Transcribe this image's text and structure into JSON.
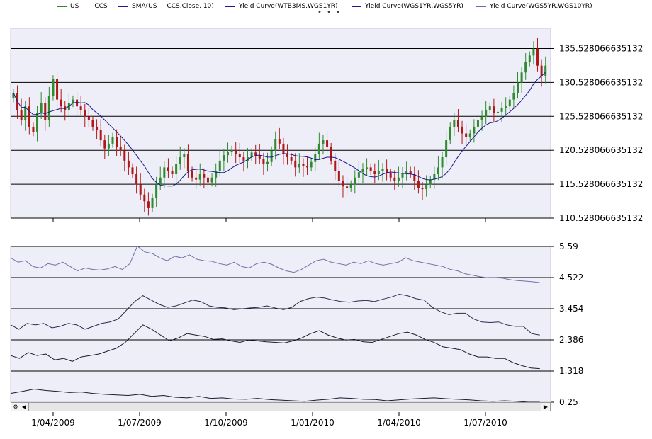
{
  "legend": [
    {
      "label": "US",
      "color": "#2e8b2e"
    },
    {
      "label": "CCS",
      "color": ""
    },
    {
      "label": "SMA(US",
      "color": "#1a1a8c"
    },
    {
      "label": "CCS.Close, 10)",
      "color": ""
    },
    {
      "label": "Yield Curve(WTB3MS,WGS1YR)",
      "color": "#1a1a8c"
    },
    {
      "label": "Yield Curve(WGS1YR,WGS5YR)",
      "color": "#1a1a8c"
    },
    {
      "label": "Yield Curve(WGS5YR,WGS10YR)",
      "color": "#6a6aa8"
    }
  ],
  "more_indicator": "• • •",
  "colors": {
    "up": "#2e8b2e",
    "down": "#b01818",
    "sma": "#1a1a8c",
    "plot_bg": "#eeeef8",
    "grid": "#000000"
  },
  "scrollbar": {
    "left_icon": "gear-icon",
    "left_arrow": "arrow-left-icon",
    "right_arrow": "arrow-right-icon"
  },
  "chart_data": [
    {
      "type": "candlestick",
      "title": "",
      "ylim": [
        110.528066635132,
        138.5
      ],
      "y_ticks": [
        "135.528066635132",
        "130.528066635132",
        "125.528066635132",
        "120.528066635132",
        "115.528066635132",
        "110.528066635132"
      ],
      "x_ticks": [
        "1/04/2009",
        "1/07/2009",
        "1/10/2009",
        "1/01/2010",
        "1/04/2010",
        "1/07/2010"
      ],
      "close": [
        129.0,
        126.5,
        125.0,
        127.0,
        124.0,
        123.2,
        126.0,
        127.5,
        125.0,
        128.5,
        131.0,
        128.0,
        127.0,
        126.5,
        127.5,
        128.0,
        127.0,
        126.5,
        125.5,
        125.0,
        124.0,
        123.5,
        122.0,
        120.8,
        121.5,
        122.5,
        121.0,
        120.5,
        119.0,
        118.0,
        117.0,
        115.5,
        114.0,
        113.0,
        112.0,
        113.5,
        115.5,
        116.5,
        118.0,
        117.5,
        117.0,
        118.5,
        119.5,
        120.0,
        117.5,
        116.5,
        116.2,
        117.0,
        116.5,
        115.8,
        116.5,
        117.5,
        119.0,
        119.8,
        120.3,
        120.6,
        120.0,
        119.5,
        119.0,
        119.5,
        120.2,
        119.8,
        119.3,
        118.5,
        118.8,
        120.5,
        122.2,
        121.5,
        120.0,
        119.5,
        119.0,
        118.0,
        118.5,
        118.2,
        118.0,
        118.8,
        120.0,
        121.5,
        122.0,
        121.0,
        119.0,
        117.5,
        116.0,
        115.2,
        115.0,
        115.5,
        116.5,
        117.3,
        117.8,
        118.0,
        117.5,
        117.0,
        117.5,
        117.8,
        117.2,
        116.5,
        116.0,
        116.5,
        117.2,
        117.5,
        117.0,
        116.0,
        115.0,
        114.8,
        115.5,
        116.2,
        117.0,
        118.0,
        119.5,
        122.0,
        124.0,
        125.0,
        124.0,
        123.0,
        122.5,
        123.0,
        124.0,
        125.0,
        125.5,
        126.5,
        127.0,
        126.0,
        126.2,
        126.8,
        127.0,
        128.0,
        129.0,
        130.5,
        132.0,
        133.5,
        134.5,
        135.5,
        133.0,
        131.5,
        133.0
      ],
      "sma_period": 10
    },
    {
      "type": "line",
      "title": "",
      "ylim": [
        0.25,
        5.59
      ],
      "y_ticks": [
        "5.59",
        "4.522",
        "3.454",
        "2.386",
        "1.318",
        "0.25"
      ],
      "series": [
        {
          "name": "Yield Curve(WGS5YR,WGS10YR)",
          "values": [
            5.2,
            5.05,
            5.1,
            4.9,
            4.85,
            5.0,
            4.95,
            5.05,
            4.9,
            4.75,
            4.85,
            4.8,
            4.78,
            4.82,
            4.9,
            4.8,
            5.0,
            5.6,
            5.4,
            5.35,
            5.2,
            5.1,
            5.25,
            5.2,
            5.3,
            5.15,
            5.1,
            5.08,
            5.0,
            4.95,
            5.05,
            4.9,
            4.85,
            5.0,
            5.05,
            4.98,
            4.85,
            4.75,
            4.7,
            4.8,
            4.95,
            5.1,
            5.15,
            5.05,
            5.0,
            4.95,
            5.05,
            5.0,
            5.1,
            5.0,
            4.95,
            5.0,
            5.05,
            5.2,
            5.1,
            5.05,
            5.0,
            4.95,
            4.9,
            4.8,
            4.75,
            4.65,
            4.6,
            4.55,
            4.52,
            4.52,
            4.5,
            4.45,
            4.42,
            4.4,
            4.38,
            4.35
          ]
        },
        {
          "name": "Yield Curve(WGS1YR,WGS5YR)",
          "values": [
            2.9,
            2.75,
            2.95,
            2.9,
            2.95,
            2.8,
            2.85,
            2.95,
            2.9,
            2.75,
            2.85,
            2.95,
            3.0,
            3.1,
            3.4,
            3.7,
            3.9,
            3.75,
            3.6,
            3.5,
            3.55,
            3.65,
            3.75,
            3.7,
            3.55,
            3.5,
            3.48,
            3.42,
            3.45,
            3.48,
            3.5,
            3.55,
            3.48,
            3.42,
            3.5,
            3.7,
            3.8,
            3.85,
            3.82,
            3.75,
            3.7,
            3.68,
            3.72,
            3.74,
            3.7,
            3.78,
            3.85,
            3.95,
            3.9,
            3.8,
            3.75,
            3.5,
            3.35,
            3.25,
            3.3,
            3.3,
            3.1,
            3.0,
            2.98,
            3.0,
            2.9,
            2.85,
            2.85,
            2.6,
            2.55
          ]
        },
        {
          "name": "Yield Curve(WTB3MS,WGS1YR)",
          "values": [
            1.85,
            1.75,
            1.95,
            1.85,
            1.9,
            1.7,
            1.75,
            1.65,
            1.8,
            1.85,
            1.9,
            2.0,
            2.1,
            2.3,
            2.6,
            2.9,
            2.75,
            2.55,
            2.35,
            2.45,
            2.6,
            2.55,
            2.5,
            2.4,
            2.42,
            2.35,
            2.3,
            2.38,
            2.35,
            2.32,
            2.3,
            2.28,
            2.35,
            2.45,
            2.6,
            2.7,
            2.55,
            2.45,
            2.38,
            2.4,
            2.32,
            2.3,
            2.4,
            2.5,
            2.6,
            2.65,
            2.55,
            2.4,
            2.3,
            2.15,
            2.1,
            2.05,
            1.9,
            1.8,
            1.8,
            1.75,
            1.75,
            1.6,
            1.5,
            1.42,
            1.4
          ]
        },
        {
          "name": "",
          "values": [
            0.55,
            0.62,
            0.7,
            0.65,
            0.62,
            0.58,
            0.6,
            0.55,
            0.52,
            0.5,
            0.48,
            0.52,
            0.45,
            0.48,
            0.42,
            0.4,
            0.45,
            0.38,
            0.4,
            0.36,
            0.35,
            0.38,
            0.34,
            0.32,
            0.3,
            0.28,
            0.32,
            0.35,
            0.4,
            0.38,
            0.35,
            0.34,
            0.3,
            0.33,
            0.36,
            0.38,
            0.4,
            0.37,
            0.35,
            0.33,
            0.3,
            0.28,
            0.3,
            0.28,
            0.25,
            0.25
          ]
        }
      ]
    }
  ]
}
